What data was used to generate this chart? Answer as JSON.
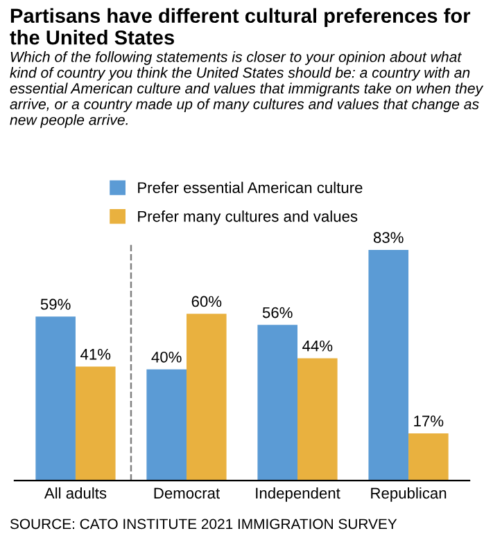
{
  "chart_data": {
    "type": "bar",
    "title": "Partisans have different cultural preferences for the United States",
    "subtitle": "Which of the following statements is closer to your opinion about what kind of country you think the United States should be: a country with an essential American culture and values that immigrants take on when they arrive, or a country made up of many cultures and values that change as new people arrive.",
    "categories": [
      "All adults",
      "Democrat",
      "Independent",
      "Republican"
    ],
    "series": [
      {
        "name": "Prefer essential American culture",
        "color": "#5b9bd5",
        "values": [
          59,
          40,
          56,
          83
        ],
        "value_labels": [
          "59%",
          "40%",
          "56%",
          "83%"
        ]
      },
      {
        "name": "Prefer many cultures and values",
        "color": "#e9b13f",
        "values": [
          41,
          60,
          44,
          17
        ],
        "value_labels": [
          "41%",
          "60%",
          "44%",
          "17%"
        ]
      }
    ],
    "legend": "top",
    "grid": false,
    "annotations": [
      "SOURCE: CATO INSTITUTE 2021 IMMIGRATION SURVEY"
    ]
  }
}
